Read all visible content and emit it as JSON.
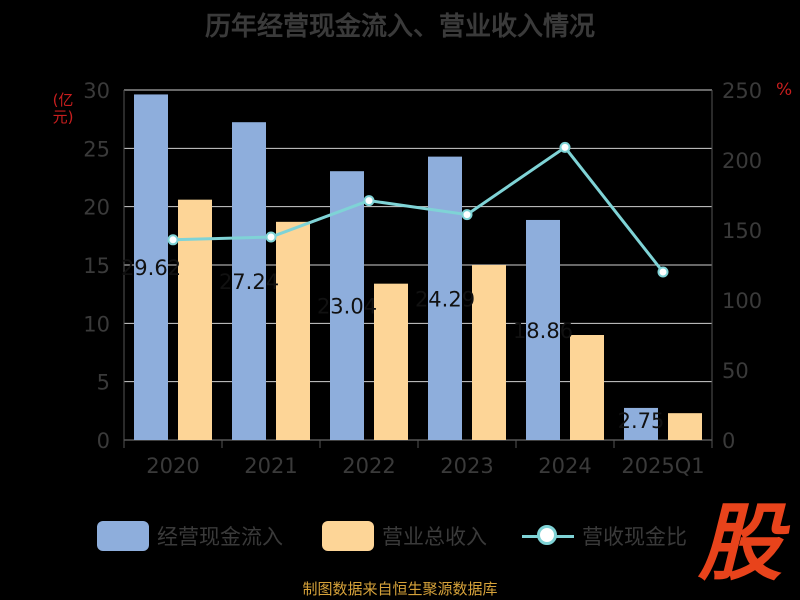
{
  "title": "历年经营现金流入、营业收入情况",
  "source": "制图数据来自恒生聚源数据库",
  "logo_text": "股",
  "colors": {
    "cash_inflow": "#8eaedc",
    "revenue": "#fdd597",
    "ratio_line": "#7fd3d6",
    "title": "#3a3a3a",
    "axis_title": "#c81e1e",
    "source": "#d6a23a",
    "logo": "#e8431b"
  },
  "chart_data": {
    "type": "bar",
    "title": "历年经营现金流入、营业收入情况",
    "categories": [
      "2020",
      "2021",
      "2022",
      "2023",
      "2024",
      "2025Q1"
    ],
    "ylabel": "(亿元)",
    "y2label": "%",
    "ylim": [
      0,
      30
    ],
    "y_ticks": [
      0,
      5,
      10,
      15,
      20,
      25,
      30
    ],
    "y2lim": [
      0,
      250
    ],
    "y2_ticks": [
      0,
      50,
      100,
      150,
      200,
      250
    ],
    "grid": true,
    "legend_position": "bottom",
    "series": [
      {
        "name": "经营现金流入",
        "type": "bar",
        "axis": "left",
        "values": [
          29.62,
          27.24,
          23.04,
          24.29,
          18.86,
          2.75
        ],
        "labels": [
          "29.62",
          "27.24",
          "23.04",
          "24.29",
          "18.86",
          "2.75"
        ]
      },
      {
        "name": "营业总收入",
        "type": "bar",
        "axis": "left",
        "values": [
          20.6,
          18.7,
          13.4,
          15.0,
          9.0,
          2.3
        ]
      },
      {
        "name": "营收现金比",
        "type": "line",
        "axis": "right",
        "values": [
          143,
          145,
          171,
          161,
          209,
          120
        ]
      }
    ]
  }
}
